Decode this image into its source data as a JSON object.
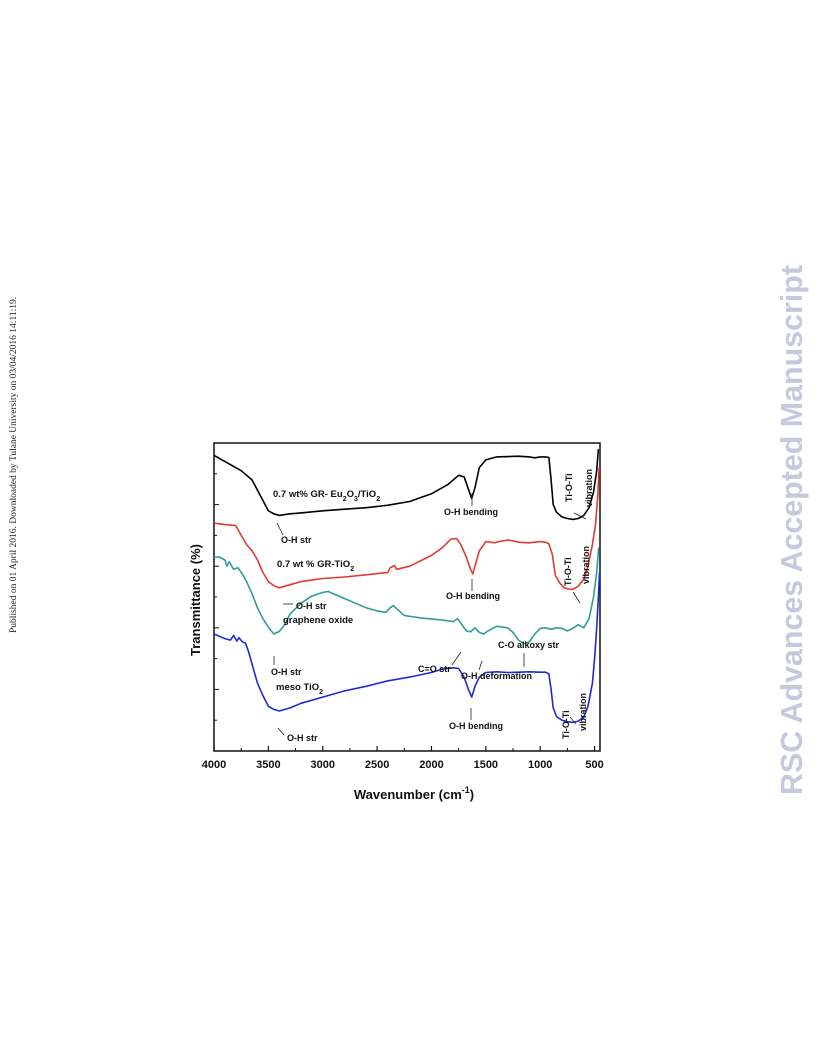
{
  "page": {
    "side_note": "Published on 01 April 2016. Downloaded by Tulane University on 03/04/2016 14:11:19.",
    "watermark": "RSC Advances Accepted Manuscript"
  },
  "chart_data": {
    "type": "line",
    "title": "",
    "xlabel": "Wavenumber (cm",
    "xlabel_sup": "-1",
    "xlabel_end": ")",
    "ylabel": "Transmittance (%)",
    "xlim": [
      4000,
      450
    ],
    "x_reversed": true,
    "ylim": [
      0,
      100
    ],
    "y_ticks_labeled": false,
    "x_ticks": [
      4000,
      3500,
      3000,
      2500,
      2000,
      1500,
      1000,
      500
    ],
    "x_tick_labels": [
      "4000",
      "3500",
      "3000",
      "2500",
      "2000",
      "1500",
      "1000",
      "500"
    ],
    "grid": false,
    "legend": "none",
    "series": [
      {
        "label_text": "0.7 wt% GR- Eu",
        "label_sub1": "2",
        "label_mid": "O",
        "label_sub2": "3",
        "label_end": "/TiO",
        "label_sub3": "2",
        "color": "#000000",
        "points": [
          [
            4000,
            96
          ],
          [
            3950,
            95
          ],
          [
            3850,
            93
          ],
          [
            3750,
            91
          ],
          [
            3650,
            88
          ],
          [
            3560,
            82
          ],
          [
            3500,
            78
          ],
          [
            3450,
            77
          ],
          [
            3400,
            76.5
          ],
          [
            3300,
            77
          ],
          [
            3200,
            77.3
          ],
          [
            3000,
            78
          ],
          [
            2800,
            78.5
          ],
          [
            2600,
            79
          ],
          [
            2400,
            79.8
          ],
          [
            2200,
            81
          ],
          [
            2000,
            83.5
          ],
          [
            1850,
            86.5
          ],
          [
            1750,
            89.5
          ],
          [
            1700,
            89
          ],
          [
            1660,
            85
          ],
          [
            1630,
            82
          ],
          [
            1600,
            85.5
          ],
          [
            1560,
            92
          ],
          [
            1500,
            94.5
          ],
          [
            1400,
            95.5
          ],
          [
            1300,
            95.6
          ],
          [
            1200,
            95.7
          ],
          [
            1100,
            95.5
          ],
          [
            1050,
            95.2
          ],
          [
            1000,
            95.5
          ],
          [
            950,
            95.5
          ],
          [
            920,
            95.3
          ],
          [
            900,
            88
          ],
          [
            880,
            80
          ],
          [
            850,
            77.5
          ],
          [
            800,
            76
          ],
          [
            750,
            75.5
          ],
          [
            700,
            75.2
          ],
          [
            650,
            75.5
          ],
          [
            600,
            76.5
          ],
          [
            550,
            79
          ],
          [
            510,
            84
          ],
          [
            480,
            91
          ],
          [
            465,
            98
          ]
        ]
      },
      {
        "label_text": "0.7 wt % GR-TiO",
        "label_sub": "2",
        "color": "#e03a32",
        "points": [
          [
            4000,
            74
          ],
          [
            3900,
            73.5
          ],
          [
            3800,
            73.2
          ],
          [
            3750,
            70
          ],
          [
            3700,
            67
          ],
          [
            3650,
            65
          ],
          [
            3600,
            62
          ],
          [
            3550,
            58
          ],
          [
            3500,
            55
          ],
          [
            3450,
            53.7
          ],
          [
            3400,
            53
          ],
          [
            3300,
            54
          ],
          [
            3200,
            55
          ],
          [
            3000,
            56
          ],
          [
            2800,
            56.5
          ],
          [
            2600,
            57.2
          ],
          [
            2400,
            58
          ],
          [
            2380,
            59.5
          ],
          [
            2340,
            60.2
          ],
          [
            2320,
            59
          ],
          [
            2200,
            60
          ],
          [
            2000,
            63.5
          ],
          [
            1900,
            66
          ],
          [
            1820,
            68.8
          ],
          [
            1770,
            69
          ],
          [
            1730,
            67
          ],
          [
            1680,
            63
          ],
          [
            1640,
            59
          ],
          [
            1620,
            57.5
          ],
          [
            1600,
            60
          ],
          [
            1560,
            65
          ],
          [
            1500,
            68
          ],
          [
            1420,
            67.6
          ],
          [
            1380,
            68
          ],
          [
            1300,
            68.5
          ],
          [
            1250,
            68.2
          ],
          [
            1200,
            67.8
          ],
          [
            1100,
            67.6
          ],
          [
            1000,
            68
          ],
          [
            950,
            67.8
          ],
          [
            920,
            67.2
          ],
          [
            890,
            64
          ],
          [
            860,
            57
          ],
          [
            820,
            54.5
          ],
          [
            780,
            53
          ],
          [
            740,
            52.6
          ],
          [
            700,
            52.5
          ],
          [
            650,
            53.5
          ],
          [
            600,
            55.8
          ],
          [
            560,
            60
          ],
          [
            520,
            67
          ],
          [
            490,
            74
          ],
          [
            470,
            83
          ],
          [
            458,
            92
          ]
        ]
      },
      {
        "label_text": "graphene oxide",
        "color": "#2f9e96",
        "points": [
          [
            4000,
            63
          ],
          [
            3950,
            63
          ],
          [
            3900,
            62
          ],
          [
            3880,
            60
          ],
          [
            3860,
            61.5
          ],
          [
            3820,
            59
          ],
          [
            3780,
            59.5
          ],
          [
            3740,
            57.5
          ],
          [
            3700,
            55
          ],
          [
            3650,
            51
          ],
          [
            3600,
            46.5
          ],
          [
            3550,
            43
          ],
          [
            3500,
            40.2
          ],
          [
            3450,
            38
          ],
          [
            3400,
            38.8
          ],
          [
            3350,
            41
          ],
          [
            3300,
            44.5
          ],
          [
            3200,
            48
          ],
          [
            3100,
            50.3
          ],
          [
            3000,
            51.5
          ],
          [
            2950,
            51.8
          ],
          [
            2900,
            51
          ],
          [
            2800,
            49.5
          ],
          [
            2700,
            48
          ],
          [
            2600,
            46.5
          ],
          [
            2500,
            45.5
          ],
          [
            2420,
            45
          ],
          [
            2380,
            46.5
          ],
          [
            2350,
            47.2
          ],
          [
            2320,
            46.2
          ],
          [
            2250,
            44
          ],
          [
            2100,
            43.2
          ],
          [
            1900,
            42.5
          ],
          [
            1800,
            42
          ],
          [
            1760,
            43
          ],
          [
            1720,
            41
          ],
          [
            1680,
            39
          ],
          [
            1640,
            38.7
          ],
          [
            1600,
            40
          ],
          [
            1560,
            38.5
          ],
          [
            1520,
            38
          ],
          [
            1480,
            39
          ],
          [
            1400,
            40.5
          ],
          [
            1300,
            40
          ],
          [
            1250,
            38.5
          ],
          [
            1200,
            36
          ],
          [
            1150,
            34.8
          ],
          [
            1100,
            35.5
          ],
          [
            1050,
            38
          ],
          [
            1000,
            39.8
          ],
          [
            950,
            40
          ],
          [
            900,
            39.5
          ],
          [
            850,
            40
          ],
          [
            800,
            39.8
          ],
          [
            750,
            39
          ],
          [
            700,
            39.8
          ],
          [
            650,
            41
          ],
          [
            600,
            40
          ],
          [
            550,
            43
          ],
          [
            510,
            50
          ],
          [
            480,
            58
          ],
          [
            462,
            66
          ]
        ]
      },
      {
        "label_text": "meso TiO",
        "label_sub": "2",
        "color": "#1d2bd6",
        "points": [
          [
            4000,
            38
          ],
          [
            3900,
            36.5
          ],
          [
            3850,
            36
          ],
          [
            3820,
            37.5
          ],
          [
            3790,
            35.7
          ],
          [
            3770,
            36.8
          ],
          [
            3740,
            35.5
          ],
          [
            3710,
            35
          ],
          [
            3680,
            32
          ],
          [
            3640,
            27
          ],
          [
            3600,
            22
          ],
          [
            3550,
            18
          ],
          [
            3500,
            14.5
          ],
          [
            3450,
            13.5
          ],
          [
            3400,
            13
          ],
          [
            3300,
            14
          ],
          [
            3200,
            15.5
          ],
          [
            3000,
            17.5
          ],
          [
            2800,
            19.5
          ],
          [
            2600,
            21
          ],
          [
            2400,
            22.8
          ],
          [
            2200,
            24
          ],
          [
            2000,
            25.5
          ],
          [
            1900,
            26.6
          ],
          [
            1800,
            27
          ],
          [
            1750,
            26.8
          ],
          [
            1700,
            24
          ],
          [
            1660,
            20
          ],
          [
            1630,
            17.5
          ],
          [
            1600,
            21
          ],
          [
            1560,
            24
          ],
          [
            1500,
            25.5
          ],
          [
            1400,
            25.7
          ],
          [
            1300,
            25.5
          ],
          [
            1200,
            25.6
          ],
          [
            1100,
            25.7
          ],
          [
            1000,
            25.6
          ],
          [
            950,
            25.6
          ],
          [
            920,
            25
          ],
          [
            900,
            20
          ],
          [
            880,
            14
          ],
          [
            850,
            11.2
          ],
          [
            800,
            10
          ],
          [
            750,
            9.5
          ],
          [
            700,
            9.3
          ],
          [
            650,
            9.7
          ],
          [
            600,
            11
          ],
          [
            560,
            14.5
          ],
          [
            520,
            22
          ],
          [
            500,
            30
          ],
          [
            480,
            40
          ],
          [
            465,
            50
          ],
          [
            455,
            58
          ]
        ]
      }
    ],
    "annotations": [
      {
        "text": "O-H str",
        "x": 3400,
        "y": 76.5
      },
      {
        "text": "O-H bending",
        "x": 1630,
        "y": 82
      },
      {
        "text": "Ti-O-Ti",
        "x": 700,
        "y": 88
      },
      {
        "text": "vibration",
        "x": 560,
        "y": 86
      },
      {
        "text": "O-H str",
        "x": 3400,
        "y": 53
      },
      {
        "text": "O-H bending",
        "x": 1620,
        "y": 57.5
      },
      {
        "text": "Ti-O-Ti",
        "x": 650,
        "y": 65
      },
      {
        "text": "vibration",
        "x": 560,
        "y": 65
      },
      {
        "text": "O-H str",
        "x": 3450,
        "y": 38
      },
      {
        "text": "C=O str",
        "x": 1720,
        "y": 41
      },
      {
        "text": "O-H deformation",
        "x": 1560,
        "y": 38.5
      },
      {
        "text": "C-O alkoxy str",
        "x": 1150,
        "y": 34.8
      },
      {
        "text": "O-H bending",
        "x": 1630,
        "y": 17.5
      },
      {
        "text": "O-H str",
        "x": 3400,
        "y": 13
      },
      {
        "text": "Ti-O-Ti",
        "x": 700,
        "y": 22
      },
      {
        "text": "vibration",
        "x": 580,
        "y": 22
      }
    ]
  }
}
